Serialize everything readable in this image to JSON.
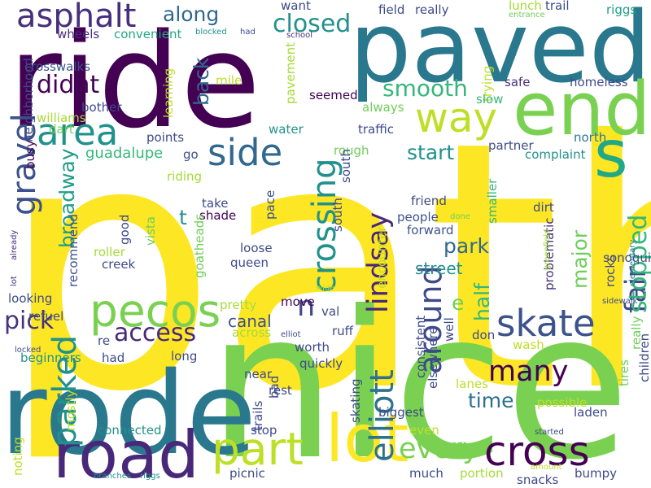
{
  "words": [
    {
      "text": "path",
      "color": "#fde725"
    },
    {
      "text": "nice",
      "color": "#7ad151"
    },
    {
      "text": "ride",
      "color": "#440154"
    },
    {
      "text": "paved",
      "color": "#2a788e"
    },
    {
      "text": "rode",
      "color": "#2a788e"
    },
    {
      "text": "end",
      "color": "#7ad151"
    },
    {
      "text": "s",
      "color": "#22a884"
    },
    {
      "text": "road",
      "color": "#482878"
    },
    {
      "text": "lot",
      "color": "#fde725"
    },
    {
      "text": "pecos",
      "color": "#7ad151"
    },
    {
      "text": "part",
      "color": "#bddf26"
    },
    {
      "text": "cross",
      "color": "#440154"
    },
    {
      "text": "way",
      "color": "#bddf26"
    },
    {
      "text": "side",
      "color": "#31688e"
    },
    {
      "text": "area",
      "color": "#21918c"
    },
    {
      "text": "skate",
      "color": "#3b528b"
    },
    {
      "text": "asphalt",
      "color": "#472f7d"
    },
    {
      "text": "crossing",
      "color": "#21918c"
    },
    {
      "text": "gravel",
      "color": "#3b528b"
    },
    {
      "text": "every",
      "color": "#7ad151"
    },
    {
      "text": "many",
      "color": "#440154"
    },
    {
      "text": "elliott",
      "color": "#2c728e"
    },
    {
      "text": "around",
      "color": "#3e4a89"
    },
    {
      "text": "parked",
      "color": "#21918c"
    },
    {
      "text": "fair",
      "color": "#3e4a89"
    },
    {
      "text": "lindsay",
      "color": "#482878"
    },
    {
      "text": "stopped",
      "color": "#35b779"
    },
    {
      "text": "smooth",
      "color": "#35b779"
    },
    {
      "text": "closed",
      "color": "#21918c"
    },
    {
      "text": "access",
      "color": "#482878"
    },
    {
      "text": "didnt",
      "color": "#440154"
    },
    {
      "text": "along",
      "color": "#31688e"
    },
    {
      "text": "back",
      "color": "#31688e"
    },
    {
      "text": "start",
      "color": "#21918c"
    },
    {
      "text": "half",
      "color": "#35b779"
    },
    {
      "text": "broadway",
      "color": "#1f9e89"
    },
    {
      "text": "park",
      "color": "#31688e"
    },
    {
      "text": "major",
      "color": "#6ece58"
    },
    {
      "text": "pick",
      "color": "#46327e"
    },
    {
      "text": "time",
      "color": "#2c728e"
    },
    {
      "text": "street",
      "color": "#21918c"
    },
    {
      "text": "n",
      "color": "#3e4a89"
    },
    {
      "text": "e",
      "color": "#6ece58"
    },
    {
      "text": "t",
      "color": "#21918c"
    },
    {
      "text": "canal",
      "color": "#3b528b"
    },
    {
      "text": "guadalupe",
      "color": "#35b779"
    },
    {
      "text": "crosswalks",
      "color": "#3b528b"
    },
    {
      "text": "wheels",
      "color": "#472f7d"
    },
    {
      "text": "convenient",
      "color": "#22a884"
    },
    {
      "text": "want",
      "color": "#3e4a89"
    },
    {
      "text": "field",
      "color": "#3e4a89"
    },
    {
      "text": "really",
      "color": "#3e4a89"
    },
    {
      "text": "lunch",
      "color": "#a5db36"
    },
    {
      "text": "trail",
      "color": "#3e4a89"
    },
    {
      "text": "riggs",
      "color": "#1f9e89"
    },
    {
      "text": "entrance",
      "color": "#6ece58"
    },
    {
      "text": "blocked",
      "color": "#21918c"
    },
    {
      "text": "had",
      "color": "#3e4a89"
    },
    {
      "text": "school",
      "color": "#472f7d"
    },
    {
      "text": "neighborhood",
      "color": "#3e4a89"
    },
    {
      "text": "learning",
      "color": "#bddf26"
    },
    {
      "text": "mile",
      "color": "#bddf26"
    },
    {
      "text": "pavement",
      "color": "#a5db36"
    },
    {
      "text": "trying",
      "color": "#bddf26"
    },
    {
      "text": "safe",
      "color": "#472f7d"
    },
    {
      "text": "homeless",
      "color": "#3e4a89"
    },
    {
      "text": "slow",
      "color": "#35b779"
    },
    {
      "text": "seemed",
      "color": "#440154"
    },
    {
      "text": "always",
      "color": "#6ece58"
    },
    {
      "text": "dart",
      "color": "#6ece58"
    },
    {
      "text": "bother",
      "color": "#3e4a89"
    },
    {
      "text": "williams",
      "color": "#a5db36"
    },
    {
      "text": "water",
      "color": "#21918c"
    },
    {
      "text": "traffic",
      "color": "#3e4a89"
    },
    {
      "text": "busy",
      "color": "#440154"
    },
    {
      "text": "points",
      "color": "#3e4a89"
    },
    {
      "text": "go",
      "color": "#3b528b"
    },
    {
      "text": "rough",
      "color": "#6ece58"
    },
    {
      "text": "partner",
      "color": "#3e4a89"
    },
    {
      "text": "north",
      "color": "#2a788e"
    },
    {
      "text": "complaint",
      "color": "#21918c"
    },
    {
      "text": "riding",
      "color": "#a5db36"
    },
    {
      "text": "south",
      "color": "#3e4a89"
    },
    {
      "text": "south",
      "color": "#3e4a89"
    },
    {
      "text": "take",
      "color": "#3e4a89"
    },
    {
      "text": "shade",
      "color": "#440154"
    },
    {
      "text": "pace",
      "color": "#3b528b"
    },
    {
      "text": "friend",
      "color": "#3e4a89"
    },
    {
      "text": "people",
      "color": "#3b528b"
    },
    {
      "text": "forward",
      "color": "#3b528b"
    },
    {
      "text": "smaller",
      "color": "#35b779"
    },
    {
      "text": "done",
      "color": "#6ece58"
    },
    {
      "text": "dirt",
      "color": "#3e4a89"
    },
    {
      "text": "good",
      "color": "#3e4a89"
    },
    {
      "text": "vista",
      "color": "#6ece58"
    },
    {
      "text": "recommend",
      "color": "#3b528b"
    },
    {
      "text": "roller",
      "color": "#a5db36"
    },
    {
      "text": "creek",
      "color": "#3e4a89"
    },
    {
      "text": "goatheads",
      "color": "#6ece58"
    },
    {
      "text": "loose",
      "color": "#3e4a89"
    },
    {
      "text": "queen",
      "color": "#3e4a89"
    },
    {
      "text": "problematic",
      "color": "#472f7d"
    },
    {
      "text": "greenfield",
      "color": "#a5db36"
    },
    {
      "text": "rocks",
      "color": "#3e4a89"
    },
    {
      "text": "sonoqui",
      "color": "#3e4a89"
    },
    {
      "text": "elementary",
      "color": "#2a788e"
    },
    {
      "text": "already",
      "color": "#472f7d"
    },
    {
      "text": "lot",
      "color": "#472f7d"
    },
    {
      "text": "wide",
      "color": "#bddf26"
    },
    {
      "text": "encounter",
      "color": "#bddf26"
    },
    {
      "text": "sidewalk",
      "color": "#3e4a89"
    },
    {
      "text": "looking",
      "color": "#3e4a89"
    },
    {
      "text": "pretty",
      "color": "#a5db36"
    },
    {
      "text": "move",
      "color": "#440154"
    },
    {
      "text": "val",
      "color": "#3e4a89"
    },
    {
      "text": "refuel",
      "color": "#3e4a89"
    },
    {
      "text": "re",
      "color": "#3e4a89"
    },
    {
      "text": "across",
      "color": "#a5db36"
    },
    {
      "text": "elliot",
      "color": "#3e4a89"
    },
    {
      "text": "ruff",
      "color": "#3e4a89"
    },
    {
      "text": "don",
      "color": "#3e4a89"
    },
    {
      "text": "locked",
      "color": "#3e4a89"
    },
    {
      "text": "worth",
      "color": "#3e4a89"
    },
    {
      "text": "wash",
      "color": "#bddf26"
    },
    {
      "text": "beginners",
      "color": "#21918c"
    },
    {
      "text": "had",
      "color": "#3e4a89"
    },
    {
      "text": "long",
      "color": "#3e4a89"
    },
    {
      "text": "quickly",
      "color": "#3e4a89"
    },
    {
      "text": "well",
      "color": "#3e4a89"
    },
    {
      "text": "consistent",
      "color": "#3e4a89"
    },
    {
      "text": "elsewhere",
      "color": "#3e4a89"
    },
    {
      "text": "tires",
      "color": "#6ece58"
    },
    {
      "text": "really",
      "color": "#6ece58"
    },
    {
      "text": "children",
      "color": "#3e4a89"
    },
    {
      "text": "near",
      "color": "#3e4a89"
    },
    {
      "text": "bad",
      "color": "#3e4a89"
    },
    {
      "text": "rest",
      "color": "#3e4a89"
    },
    {
      "text": "lanes",
      "color": "#bddf26"
    },
    {
      "text": "possible",
      "color": "#bddf26"
    },
    {
      "text": "laden",
      "color": "#3e4a89"
    },
    {
      "text": "mostly",
      "color": "#bddf26"
    },
    {
      "text": "trails",
      "color": "#3e4a89"
    },
    {
      "text": "skating",
      "color": "#3e4a89"
    },
    {
      "text": "biggest",
      "color": "#3e4a89"
    },
    {
      "text": "connected",
      "color": "#21918c"
    },
    {
      "text": "stop",
      "color": "#3e4a89"
    },
    {
      "text": "even",
      "color": "#bddf26"
    },
    {
      "text": "started",
      "color": "#3e4a89"
    },
    {
      "text": "noting",
      "color": "#bddf26"
    },
    {
      "text": "picnic",
      "color": "#3e4a89"
    },
    {
      "text": "much",
      "color": "#3e4a89"
    },
    {
      "text": "portion",
      "color": "#a5db36"
    },
    {
      "text": "amount",
      "color": "#bddf26"
    },
    {
      "text": "snacks",
      "color": "#3e4a89"
    },
    {
      "text": "bumpy",
      "color": "#3e4a89"
    },
    {
      "text": "branches",
      "color": "#21918c"
    },
    {
      "text": "riggs",
      "color": "#21918c"
    }
  ]
}
